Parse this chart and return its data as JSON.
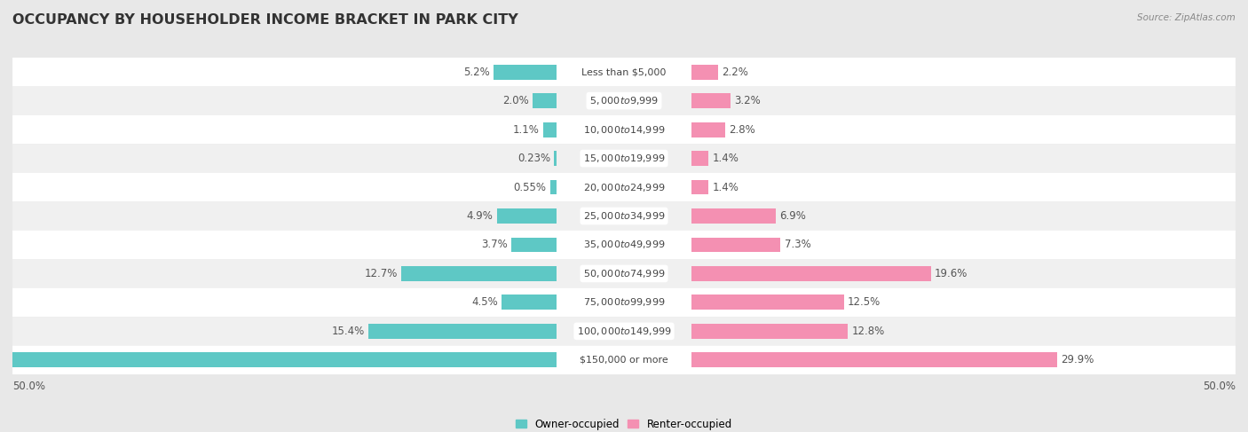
{
  "title": "OCCUPANCY BY HOUSEHOLDER INCOME BRACKET IN PARK CITY",
  "source": "Source: ZipAtlas.com",
  "categories": [
    "Less than $5,000",
    "$5,000 to $9,999",
    "$10,000 to $14,999",
    "$15,000 to $19,999",
    "$20,000 to $24,999",
    "$25,000 to $34,999",
    "$35,000 to $49,999",
    "$50,000 to $74,999",
    "$75,000 to $99,999",
    "$100,000 to $149,999",
    "$150,000 or more"
  ],
  "owner_values": [
    5.2,
    2.0,
    1.1,
    0.23,
    0.55,
    4.9,
    3.7,
    12.7,
    4.5,
    15.4,
    49.8
  ],
  "renter_values": [
    2.2,
    3.2,
    2.8,
    1.4,
    1.4,
    6.9,
    7.3,
    19.6,
    12.5,
    12.8,
    29.9
  ],
  "owner_color": "#5ec8c5",
  "renter_color": "#f490b2",
  "background_color": "#e8e8e8",
  "row_colors": [
    "#ffffff",
    "#f0f0f0"
  ],
  "axis_label_left": "50.0%",
  "axis_label_right": "50.0%",
  "max_value": 50.0,
  "bar_height": 0.52,
  "title_fontsize": 11.5,
  "label_fontsize": 8.5,
  "category_fontsize": 8.0,
  "legend_label_owner": "Owner-occupied",
  "legend_label_renter": "Renter-occupied"
}
